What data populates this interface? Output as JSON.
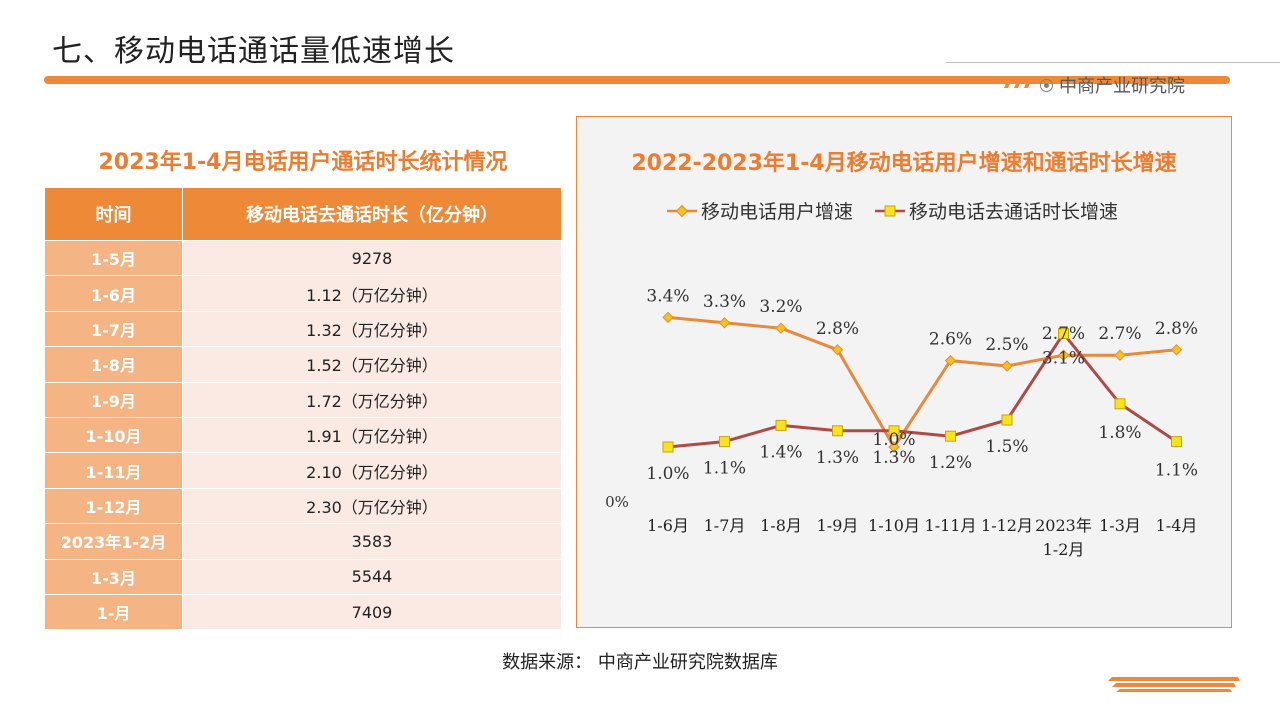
{
  "page_title": "七、移动电话通话量低速增长",
  "brand": {
    "text": "中商产业研究院",
    "icon": "target-circle-icon",
    "accent": "#ee8a37"
  },
  "table": {
    "title": "2023年1-4月电话用户通话时长统计情况",
    "headers": [
      "时间",
      "移动电话去通话时长（亿分钟）"
    ],
    "rows": [
      [
        "1-5月",
        "9278"
      ],
      [
        "1-6月",
        "1.12（万亿分钟）"
      ],
      [
        "1-7月",
        "1.32（万亿分钟）"
      ],
      [
        "1-8月",
        "1.52（万亿分钟）"
      ],
      [
        "1-9月",
        "1.72（万亿分钟）"
      ],
      [
        "1-10月",
        "1.91（万亿分钟）"
      ],
      [
        "1-11月",
        "2.10（万亿分钟）"
      ],
      [
        "1-12月",
        "2.30（万亿分钟）"
      ],
      [
        "2023年1-2月",
        "3583"
      ],
      [
        "1-3月",
        "5544"
      ],
      [
        "1-月",
        "7409"
      ]
    ]
  },
  "chart_data": {
    "type": "line",
    "title": "2022-2023年1-4月移动电话用户增速和通话时长增速",
    "categories": [
      "1-6月",
      "1-7月",
      "1-8月",
      "1-9月",
      "1-10月",
      "1-11月",
      "1-12月",
      "2023年1-2月",
      "1-3月",
      "1-4月"
    ],
    "y_tick_labels": [
      "0%"
    ],
    "legend_position": "top",
    "series": [
      {
        "name": "移动电话用户增速",
        "color": "#e8893c",
        "marker": "diamond",
        "values": [
          3.4,
          3.3,
          3.2,
          2.8,
          1.0,
          2.6,
          2.5,
          2.7,
          2.7,
          2.8
        ],
        "labels": [
          "3.4%",
          "3.3%",
          "3.2%",
          "2.8%",
          "1.0%",
          "2.6%",
          "2.5%",
          "2.7%",
          "2.7%",
          "2.8%"
        ]
      },
      {
        "name": "移动电话去通话时长增速",
        "color": "#b04a45",
        "marker": "square",
        "values": [
          1.0,
          1.1,
          1.4,
          1.3,
          1.3,
          1.2,
          1.5,
          3.1,
          1.8,
          1.1
        ],
        "labels": [
          "1.0%",
          "1.1%",
          "1.4%",
          "1.3%",
          "1.3%",
          "1.2%",
          "1.5%",
          "3.1%",
          "1.8%",
          "1.1%"
        ]
      }
    ]
  },
  "source": "数据来源： 中商产业研究院数据库"
}
